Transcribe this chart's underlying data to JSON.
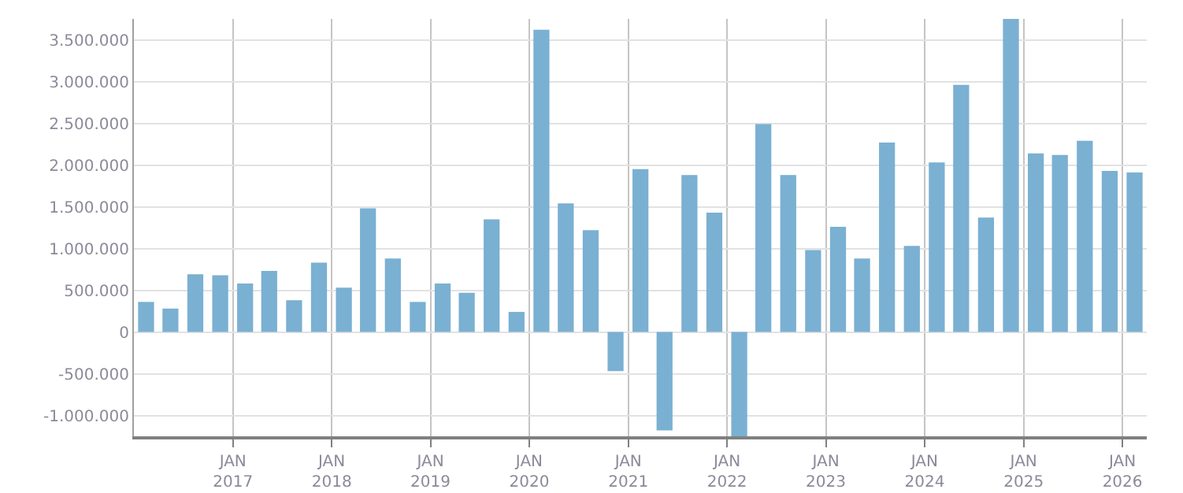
{
  "chart_data": {
    "type": "bar",
    "x": [
      "2016-02-15",
      "2016-05-15",
      "2016-08-15",
      "2016-11-15",
      "2017-02-15",
      "2017-05-15",
      "2017-08-15",
      "2017-11-15",
      "2018-02-15",
      "2018-05-15",
      "2018-08-15",
      "2018-11-15",
      "2019-02-15",
      "2019-05-15",
      "2019-08-15",
      "2019-11-15",
      "2020-02-15",
      "2020-05-15",
      "2020-08-15",
      "2020-11-15",
      "2021-02-15",
      "2021-05-15",
      "2021-08-15",
      "2021-11-15",
      "2022-02-15",
      "2022-05-15",
      "2022-08-15",
      "2022-11-15",
      "2023-02-15",
      "2023-05-15",
      "2023-08-15",
      "2023-11-15",
      "2024-02-15",
      "2024-05-15",
      "2024-08-15",
      "2024-11-15",
      "2025-02-15",
      "2025-05-15",
      "2025-08-15",
      "2025-11-15",
      "2026-02-15"
    ],
    "values": [
      360000,
      280000,
      690000,
      680000,
      580000,
      730000,
      380000,
      830000,
      530000,
      1480000,
      880000,
      360000,
      580000,
      470000,
      1350000,
      240000,
      3620000,
      1540000,
      1220000,
      -470000,
      1950000,
      -1180000,
      1880000,
      1430000,
      -1250000,
      2490000,
      1880000,
      980000,
      1260000,
      880000,
      2270000,
      1030000,
      2030000,
      2960000,
      1370000,
      3750000,
      2140000,
      2120000,
      2290000,
      1930000,
      1910000
    ],
    "color": "#7ab0d2",
    "xlim": [
      "2016-01-01",
      "2026-04-01"
    ],
    "xticks": [
      {
        "value": "2017-01-01",
        "label": "JAN\n2017"
      },
      {
        "value": "2018-01-01",
        "label": "JAN\n2018"
      },
      {
        "value": "2019-01-01",
        "label": "JAN\n2019"
      },
      {
        "value": "2020-01-01",
        "label": "JAN\n2020"
      },
      {
        "value": "2021-01-01",
        "label": "JAN\n2021"
      },
      {
        "value": "2022-01-01",
        "label": "JAN\n2022"
      },
      {
        "value": "2023-01-01",
        "label": "JAN\n2023"
      },
      {
        "value": "2024-01-01",
        "label": "JAN\n2024"
      },
      {
        "value": "2025-01-01",
        "label": "JAN\n2025"
      },
      {
        "value": "2026-01-01",
        "label": "JAN\n2026"
      }
    ],
    "ylim": [
      -1250000,
      3750000
    ],
    "yticks": [
      {
        "value": -1000000,
        "label": "-1.000.000"
      },
      {
        "value": -500000,
        "label": "-500.000"
      },
      {
        "value": 0,
        "label": "0"
      },
      {
        "value": 500000,
        "label": "500.000"
      },
      {
        "value": 1000000,
        "label": "1.000.000"
      },
      {
        "value": 1500000,
        "label": "1.500.000"
      },
      {
        "value": 2000000,
        "label": "2.000.000"
      },
      {
        "value": 2500000,
        "label": "2.500.000"
      },
      {
        "value": 3000000,
        "label": "3.000.000"
      },
      {
        "value": 3500000,
        "label": "3.500.000"
      }
    ],
    "grid": true,
    "legend": false
  }
}
